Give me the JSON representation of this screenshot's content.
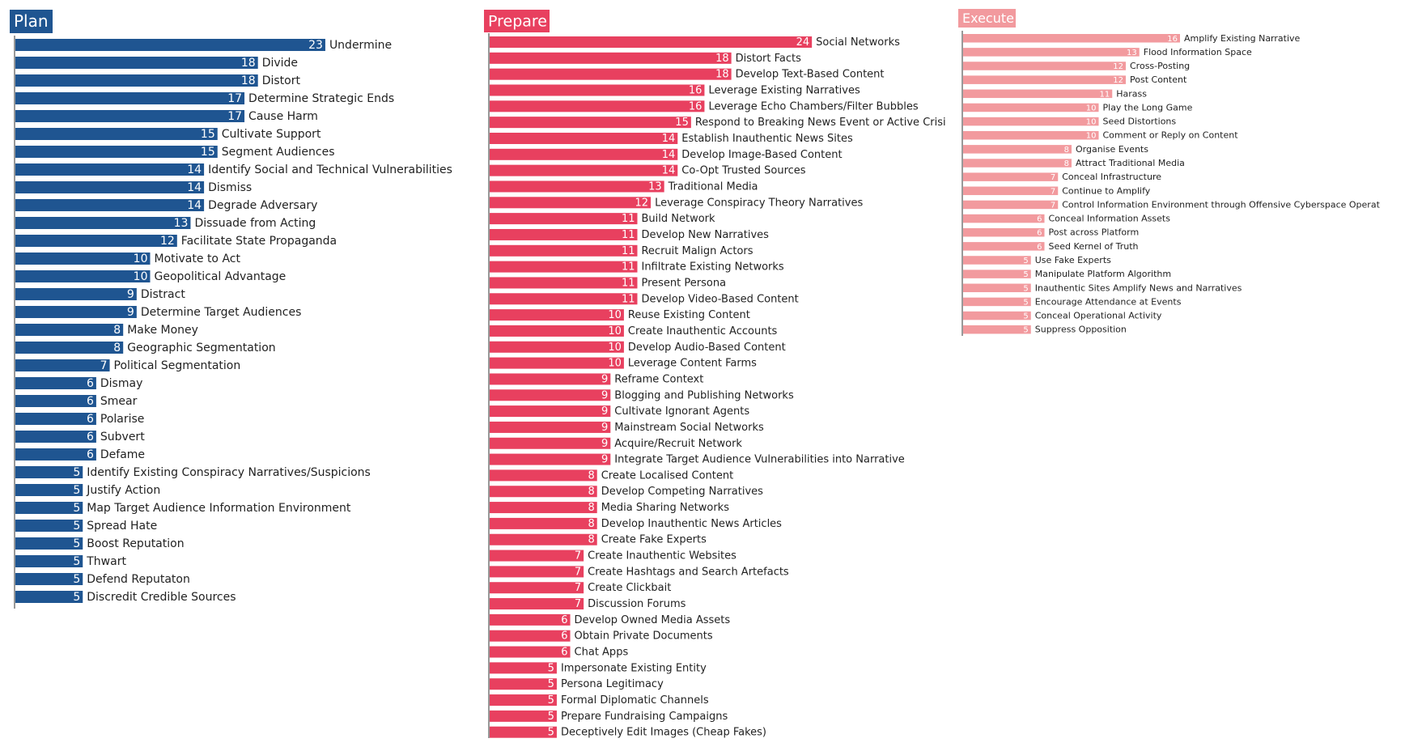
{
  "chart_data": [
    {
      "type": "bar",
      "orientation": "horizontal",
      "title": "Plan",
      "color": "#1f5591",
      "title_text_color": "#ffffff",
      "value_label_color": "#ffffff",
      "categories": [
        "Undermine",
        "Divide",
        "Distort",
        "Determine Strategic Ends",
        "Cause Harm",
        "Cultivate Support",
        "Segment Audiences",
        "Identify Social and Technical Vulnerabilities",
        "Dismiss",
        "Degrade Adversary",
        "Dissuade from Acting",
        "Facilitate State Propaganda",
        "Motivate to Act",
        "Geopolitical Advantage",
        "Distract",
        "Determine Target Audiences",
        "Make Money",
        "Geographic Segmentation",
        "Political Segmentation",
        "Dismay",
        "Smear",
        "Polarise",
        "Subvert",
        "Defame",
        "Identify Existing Conspiracy Narratives/Suspicions",
        "Justify Action",
        "Map Target Audience Information Environment",
        "Spread Hate",
        "Boost Reputation",
        "Thwart",
        "Defend Reputaton",
        "Discredit Credible Sources"
      ],
      "values": [
        23,
        18,
        18,
        17,
        17,
        15,
        15,
        14,
        14,
        14,
        13,
        12,
        10,
        10,
        9,
        9,
        8,
        8,
        7,
        6,
        6,
        6,
        6,
        6,
        5,
        5,
        5,
        5,
        5,
        5,
        5,
        5
      ]
    },
    {
      "type": "bar",
      "orientation": "horizontal",
      "title": "Prepare",
      "color": "#e8405f",
      "title_text_color": "#ffffff",
      "value_label_color": "#ffffff",
      "categories": [
        "Social Networks",
        "Distort Facts",
        "Develop Text-Based Content",
        "Leverage Existing Narratives",
        "Leverage Echo Chambers/Filter Bubbles",
        "Respond to Breaking News Event or Active Crisi",
        "Establish Inauthentic News Sites",
        "Develop Image-Based Content",
        "Co-Opt Trusted Sources",
        "Traditional Media",
        "Leverage Conspiracy Theory Narratives",
        "Build Network",
        "Develop New Narratives",
        "Recruit Malign Actors",
        "Infiltrate Existing Networks",
        "Present Persona",
        "Develop Video-Based Content",
        "Reuse Existing Content",
        "Create Inauthentic Accounts",
        "Develop Audio-Based Content",
        "Leverage Content Farms",
        "Reframe Context",
        "Blogging and Publishing Networks",
        "Cultivate Ignorant Agents",
        "Mainstream Social Networks",
        "Acquire/Recruit Network",
        "Integrate Target Audience Vulnerabilities into Narrative",
        "Create Localised Content",
        "Develop Competing Narratives",
        "Media Sharing Networks",
        "Develop Inauthentic News Articles",
        "Create Fake Experts",
        "Create Inauthentic Websites",
        "Create Hashtags and Search Artefacts",
        "Create Clickbait",
        "Discussion Forums",
        "Develop Owned Media Assets",
        "Obtain Private Documents",
        "Chat Apps",
        "Impersonate Existing Entity",
        "Persona Legitimacy",
        "Formal Diplomatic Channels",
        "Prepare Fundraising Campaigns",
        "Deceptively Edit Images (Cheap Fakes)"
      ],
      "values": [
        24,
        18,
        18,
        16,
        16,
        15,
        14,
        14,
        14,
        13,
        12,
        11,
        11,
        11,
        11,
        11,
        11,
        10,
        10,
        10,
        10,
        9,
        9,
        9,
        9,
        9,
        9,
        8,
        8,
        8,
        8,
        8,
        7,
        7,
        7,
        7,
        6,
        6,
        6,
        5,
        5,
        5,
        5,
        5
      ]
    },
    {
      "type": "bar",
      "orientation": "horizontal",
      "title": "Execute",
      "color": "#f29a9e",
      "title_text_color": "#ffffff",
      "value_label_color": "#ffffff",
      "categories": [
        "Amplify Existing Narrative",
        "Flood Information Space",
        "Cross-Posting",
        "Post Content",
        "Harass",
        "Play the Long Game",
        "Seed Distortions",
        "Comment or Reply on Content",
        "Organise Events",
        "Attract Traditional Media",
        "Conceal Infrastructure",
        "Continue to Amplify",
        "Control Information Environment through Offensive Cyberspace Operat",
        "Conceal Information Assets",
        "Post across Platform",
        "Seed Kernel of Truth",
        "Use Fake Experts",
        "Manipulate Platform Algorithm",
        "Inauthentic Sites Amplify News and Narratives",
        "Encourage Attendance at Events",
        "Conceal Operational Activity",
        "Suppress Opposition"
      ],
      "values": [
        16,
        13,
        12,
        12,
        11,
        10,
        10,
        10,
        8,
        8,
        7,
        7,
        7,
        6,
        6,
        6,
        5,
        5,
        5,
        5,
        5,
        5
      ]
    }
  ]
}
